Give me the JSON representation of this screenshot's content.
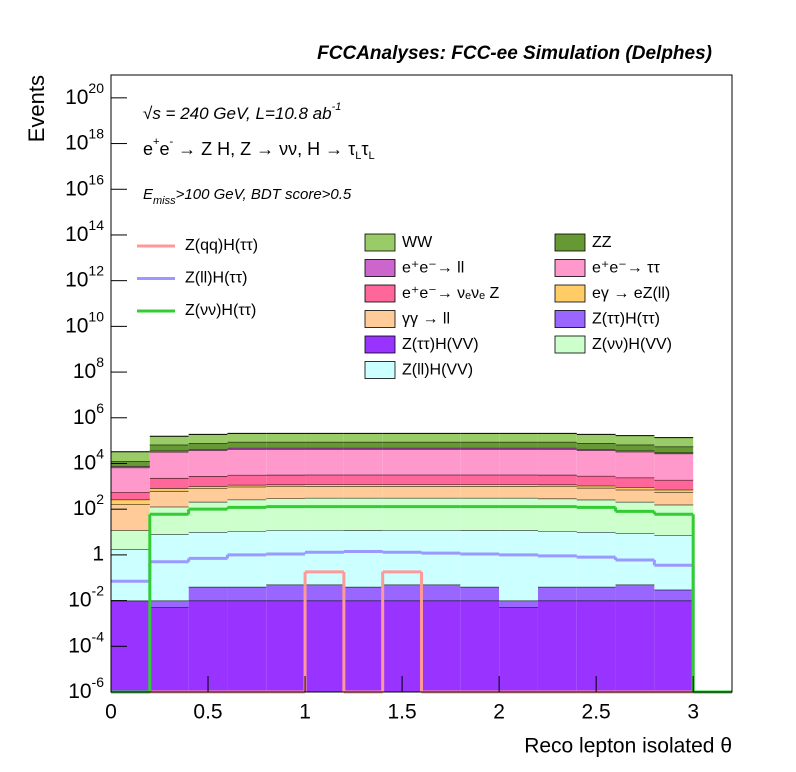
{
  "chart_data": {
    "type": "histogram",
    "stacked": true,
    "log_y": true,
    "title": "FCCAnalyses: FCC-ee Simulation (Delphes)",
    "x_label": "Reco lepton isolated θ",
    "y_label": "Events",
    "annotations": [
      [
        {
          "t": "√s = 240 GeV, L=10.8 ab"
        },
        {
          "t": "-1",
          "s": "sup"
        }
      ],
      [
        {
          "t": "e"
        },
        {
          "t": "+",
          "s": "sup"
        },
        {
          "t": "e"
        },
        {
          "t": "-",
          "s": "sup"
        },
        {
          "t": " → Z H, Z  → νν, H → τ"
        },
        {
          "t": "L",
          "s": "sub"
        },
        {
          "t": "τ"
        },
        {
          "t": "L",
          "s": "sub"
        }
      ],
      [
        {
          "t": "E"
        },
        {
          "t": "miss",
          "s": "sub"
        },
        {
          "t": ">100 GeV, BDT score>0.5"
        }
      ]
    ],
    "bins": [
      0,
      0.2,
      0.4,
      0.6,
      0.8,
      1,
      1.2,
      1.4,
      1.6,
      1.8,
      2,
      2.2,
      2.4,
      2.6,
      2.8,
      3,
      3.2
    ],
    "xlim": [
      0,
      3.2
    ],
    "xticks": [
      0,
      0.5,
      1,
      1.5,
      2,
      2.5,
      3
    ],
    "ylim": [
      1e-06,
      1e+21
    ],
    "yticks": [
      {
        "value": 1e-06,
        "label": "10",
        "exp": "-6"
      },
      {
        "value": 0.0001,
        "label": "10",
        "exp": "-4"
      },
      {
        "value": 0.01,
        "label": "10",
        "exp": "-2"
      },
      1,
      {
        "value": 100,
        "label": "10",
        "exp": "2"
      },
      {
        "value": 10000,
        "label": "10",
        "exp": "4"
      },
      {
        "value": 1000000,
        "label": "10",
        "exp": "6"
      },
      {
        "value": 100000000.0,
        "label": "10",
        "exp": "8"
      },
      {
        "value": 10000000000.0,
        "label": "10",
        "exp": "10"
      },
      {
        "value": 1000000000000.0,
        "label": "10",
        "exp": "12"
      },
      {
        "value": 100000000000000.0,
        "label": "10",
        "exp": "14"
      },
      {
        "value": 1e+16,
        "label": "10",
        "exp": "16"
      },
      {
        "value": 1e+18,
        "label": "10",
        "exp": "18"
      },
      {
        "value": 1e+20,
        "label": "10",
        "exp": "20"
      }
    ],
    "series": [
      {
        "name": "WW",
        "color": "#99cc66",
        "values": [
          20000,
          90000,
          110000,
          120000,
          120000,
          120000,
          120000,
          120000,
          120000,
          120000,
          120000,
          120000,
          110000,
          100000,
          80000,
          0
        ]
      },
      {
        "name": "ZZ",
        "color": "#669933",
        "values": [
          5000,
          30000,
          35000,
          40000,
          40000,
          40000,
          40000,
          40000,
          40000,
          40000,
          40000,
          40000,
          35000,
          30000,
          25000,
          0
        ]
      },
      {
        "name": "e⁺e⁻→ ll",
        "color": "#cc66cc",
        "values": [
          1000,
          4000,
          5000,
          5000,
          5000,
          5000,
          5000,
          5000,
          5000,
          5000,
          5000,
          5000,
          5000,
          4000,
          3000,
          0
        ]
      },
      {
        "name": "e⁺e⁻→ ττ",
        "color": "#ff99cc",
        "values": [
          6000,
          30000,
          35000,
          40000,
          40000,
          40000,
          40000,
          40000,
          40000,
          40000,
          40000,
          40000,
          35000,
          30000,
          25000,
          0
        ]
      },
      {
        "name": "e⁺e⁻→ νₑνₑ Z",
        "color": "#ff6699",
        "values": [
          300,
          1500,
          1800,
          2000,
          2000,
          2000,
          2000,
          2000,
          2000,
          2000,
          2000,
          2000,
          1800,
          1500,
          1200,
          0
        ]
      },
      {
        "name": "eγ → eZ(ll)",
        "color": "#ffcc66",
        "values": [
          100,
          200,
          200,
          200,
          200,
          200,
          200,
          200,
          200,
          200,
          200,
          200,
          200,
          200,
          150,
          0
        ]
      },
      {
        "name": "γγ → ll",
        "color": "#ffcc99",
        "values": [
          150,
          500,
          600,
          700,
          700,
          700,
          700,
          700,
          700,
          700,
          700,
          700,
          600,
          500,
          400,
          0
        ]
      },
      {
        "name": "Z(ττ)H(ττ)",
        "color": "#9966ff",
        "values": [
          0,
          0.005,
          0.03,
          0.03,
          0.04,
          0.04,
          0.03,
          0.04,
          0.04,
          0.03,
          0.005,
          0.03,
          0.03,
          0.04,
          0.02,
          0
        ]
      },
      {
        "name": "Z(ττ)H(VV)",
        "color": "#9933ff",
        "values": [
          0.01,
          0.005,
          0.01,
          0.01,
          0.01,
          0.01,
          0.01,
          0.01,
          0.01,
          0.01,
          0.005,
          0.01,
          0.01,
          0.01,
          0.01,
          0
        ]
      },
      {
        "name": "Z(νν)H(VV)",
        "color": "#ccffcc",
        "values": [
          10,
          120,
          200,
          250,
          280,
          300,
          300,
          300,
          300,
          300,
          300,
          280,
          250,
          200,
          150,
          0
        ]
      },
      {
        "name": "Z(ll)H(VV)",
        "color": "#ccffff",
        "values": [
          1.8,
          8,
          10,
          11,
          12,
          12,
          12,
          12,
          12,
          12,
          12,
          11,
          10,
          9,
          7,
          0
        ]
      }
    ],
    "lines": [
      {
        "name": "Z(qq)H(ττ)",
        "color": "#ff9999",
        "values": [
          0,
          0,
          0,
          0,
          0,
          0.18,
          0,
          0.18,
          0,
          0,
          0,
          0,
          0,
          0,
          0,
          0
        ]
      },
      {
        "name": "Z(ll)H(ττ)",
        "color": "#9999ff",
        "values": [
          0.07,
          0.5,
          0.7,
          1,
          1.1,
          1.3,
          1.4,
          1.3,
          1.2,
          1.1,
          1,
          0.9,
          0.8,
          0.6,
          0.35,
          0
        ]
      },
      {
        "name": "Z(νν)H(ττ)",
        "color": "#33cc33",
        "values": [
          0,
          60,
          100,
          120,
          130,
          130,
          130,
          130,
          130,
          130,
          130,
          130,
          120,
          80,
          60,
          0
        ]
      }
    ]
  }
}
